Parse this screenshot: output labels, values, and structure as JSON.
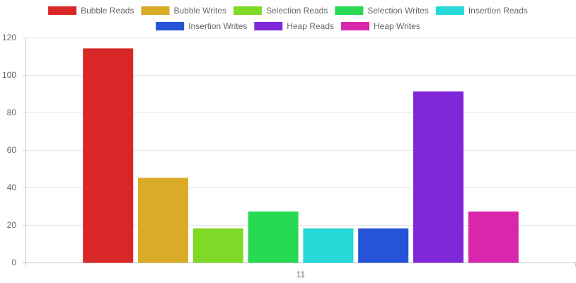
{
  "chart_data": {
    "type": "bar",
    "categories": [
      "11"
    ],
    "series": [
      {
        "name": "Bubble Reads",
        "values": [
          114
        ],
        "color": "#d92727"
      },
      {
        "name": "Bubble Writes",
        "values": [
          45
        ],
        "color": "#d9ab27"
      },
      {
        "name": "Selection Reads",
        "values": [
          18
        ],
        "color": "#7fd927"
      },
      {
        "name": "Selection Writes",
        "values": [
          27
        ],
        "color": "#27d953"
      },
      {
        "name": "Insertion Reads",
        "values": [
          18
        ],
        "color": "#27d9d9"
      },
      {
        "name": "Insertion Writes",
        "values": [
          18
        ],
        "color": "#2753d9"
      },
      {
        "name": "Heap Reads",
        "values": [
          91
        ],
        "color": "#7f27d9"
      },
      {
        "name": "Heap Writes",
        "values": [
          27
        ],
        "color": "#d927ab"
      }
    ],
    "ylim": [
      0,
      120
    ],
    "yticks": [
      0,
      20,
      40,
      60,
      80,
      100,
      120
    ],
    "grid": true,
    "legend": "top"
  }
}
